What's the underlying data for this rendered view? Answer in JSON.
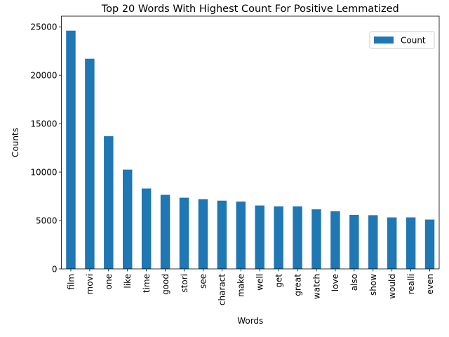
{
  "chart_data": {
    "type": "bar",
    "title": "Top 20 Words With Highest Count For Positive Lemmatized",
    "xlabel": "Words",
    "ylabel": "Counts",
    "ylim": [
      0,
      26100
    ],
    "yticks": [
      0,
      5000,
      10000,
      15000,
      20000,
      25000
    ],
    "grid": false,
    "legend_position": "top-right",
    "color": "#1f77b4",
    "categories": [
      "film",
      "movi",
      "one",
      "like",
      "time",
      "good",
      "stori",
      "see",
      "charact",
      "make",
      "well",
      "get",
      "great",
      "watch",
      "love",
      "also",
      "show",
      "would",
      "realli",
      "even"
    ],
    "series": [
      {
        "name": "Count",
        "values": [
          24600,
          21700,
          13700,
          10250,
          8300,
          7650,
          7350,
          7200,
          7050,
          6950,
          6550,
          6450,
          6450,
          6150,
          5950,
          5580,
          5550,
          5320,
          5320,
          5100
        ]
      }
    ]
  }
}
